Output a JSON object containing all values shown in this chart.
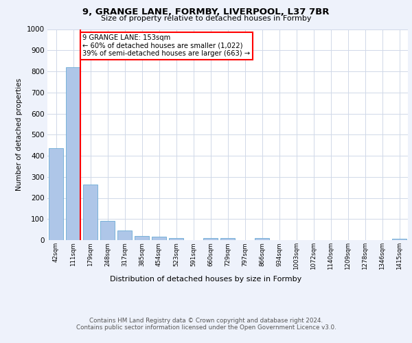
{
  "title1": "9, GRANGE LANE, FORMBY, LIVERPOOL, L37 7BR",
  "title2": "Size of property relative to detached houses in Formby",
  "xlabel": "Distribution of detached houses by size in Formby",
  "ylabel": "Number of detached properties",
  "categories": [
    "42sqm",
    "111sqm",
    "179sqm",
    "248sqm",
    "317sqm",
    "385sqm",
    "454sqm",
    "523sqm",
    "591sqm",
    "660sqm",
    "729sqm",
    "797sqm",
    "866sqm",
    "934sqm",
    "1003sqm",
    "1072sqm",
    "1140sqm",
    "1209sqm",
    "1278sqm",
    "1346sqm",
    "1415sqm"
  ],
  "values": [
    435,
    820,
    265,
    92,
    44,
    20,
    16,
    10,
    0,
    10,
    10,
    0,
    10,
    0,
    0,
    0,
    0,
    0,
    0,
    0,
    8
  ],
  "bar_color": "#aec6e8",
  "bar_edge_color": "#6aaad4",
  "red_line_color": "red",
  "annotation_text": "9 GRANGE LANE: 153sqm\n← 60% of detached houses are smaller (1,022)\n39% of semi-detached houses are larger (663) →",
  "annotation_box_color": "white",
  "annotation_box_edge_color": "red",
  "ylim": [
    0,
    1000
  ],
  "yticks": [
    0,
    100,
    200,
    300,
    400,
    500,
    600,
    700,
    800,
    900,
    1000
  ],
  "footer1": "Contains HM Land Registry data © Crown copyright and database right 2024.",
  "footer2": "Contains public sector information licensed under the Open Government Licence v3.0.",
  "bg_color": "#eef2fb",
  "plot_bg_color": "#ffffff",
  "grid_color": "#d0d8e8"
}
